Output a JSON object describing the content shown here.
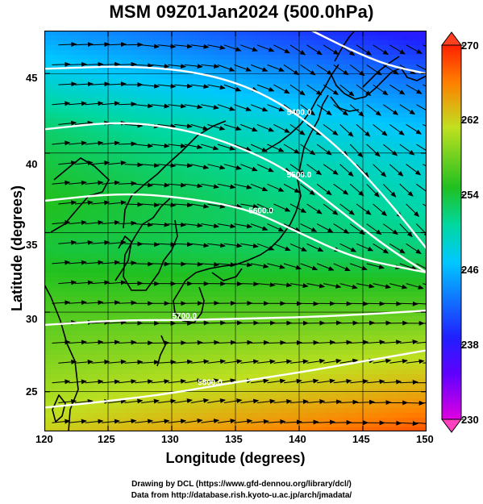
{
  "title": "MSM 09Z01Jan2024 (500.0hPa)",
  "chart_data": {
    "type": "heatmap",
    "title": "MSM 09Z01Jan2024 (500.0hPa)",
    "xlabel": "Longitude (degrees)",
    "ylabel": "Latitude  (degrees)",
    "xlim": [
      120,
      150
    ],
    "ylim": [
      22.5,
      47.7
    ],
    "x_ticks": [
      "120",
      "125",
      "130",
      "135",
      "140",
      "145",
      "150"
    ],
    "y_ticks": [
      "25",
      "30",
      "35",
      "40",
      "45"
    ],
    "colorbar": {
      "min": 230,
      "max": 270,
      "ticks": [
        "230",
        "238",
        "246",
        "254",
        "262",
        "270"
      ],
      "colors": [
        "#e000e0",
        "#2020ff",
        "#00c0ff",
        "#00d8a0",
        "#20c020",
        "#c0e020",
        "#ff8000",
        "#ff2000"
      ]
    },
    "contours": [
      {
        "label": "5400.0",
        "points": [
          [
            120,
            45.3
          ],
          [
            127,
            45.5
          ],
          [
            133,
            45.0
          ],
          [
            138,
            43.5
          ],
          [
            143,
            40.5
          ],
          [
            147,
            37
          ],
          [
            150,
            34
          ]
        ]
      },
      {
        "label": "5500.0",
        "points": [
          [
            120,
            41.5
          ],
          [
            126,
            42
          ],
          [
            131,
            41.5
          ],
          [
            135,
            40.5
          ],
          [
            139,
            39
          ],
          [
            143,
            36.5
          ],
          [
            147,
            34
          ],
          [
            150,
            32.5
          ]
        ]
      },
      {
        "label": "5600.0",
        "points": [
          [
            120,
            37
          ],
          [
            126,
            37.5
          ],
          [
            131,
            37.2
          ],
          [
            136,
            36.5
          ],
          [
            140,
            35
          ],
          [
            144,
            33.5
          ],
          [
            148,
            32.8
          ],
          [
            150,
            32.5
          ]
        ]
      },
      {
        "label": "5700.0",
        "points": [
          [
            120,
            29.2
          ],
          [
            126,
            29.5
          ],
          [
            131,
            29.5
          ],
          [
            136,
            29.6
          ],
          [
            141,
            29.7
          ],
          [
            146,
            29.9
          ],
          [
            150,
            30.1
          ]
        ]
      },
      {
        "label": "5800.0",
        "points": [
          [
            120,
            24
          ],
          [
            125,
            24.4
          ],
          [
            130,
            24.9
          ],
          [
            135,
            25.6
          ],
          [
            140,
            26.2
          ],
          [
            145,
            26.9
          ],
          [
            150,
            27.6
          ]
        ]
      },
      {
        "label": "",
        "points": [
          [
            141,
            47.7
          ],
          [
            144,
            46.5
          ],
          [
            147,
            45.5
          ],
          [
            150,
            45
          ]
        ]
      }
    ],
    "temperature_field": [
      {
        "lat": 47.5,
        "left": 245,
        "right": 238
      },
      {
        "lat": 45,
        "left": 248,
        "right": 242
      },
      {
        "lat": 42,
        "left": 252,
        "right": 246
      },
      {
        "lat": 40,
        "left": 253.5,
        "right": 248
      },
      {
        "lat": 37,
        "left": 255,
        "right": 250
      },
      {
        "lat": 34,
        "left": 254,
        "right": 252
      },
      {
        "lat": 31,
        "left": 256,
        "right": 256
      },
      {
        "lat": 28,
        "left": 258,
        "right": 260
      },
      {
        "lat": 25,
        "left": 260,
        "right": 264
      },
      {
        "lat": 22.5,
        "left": 262,
        "right": 268
      }
    ],
    "wind": "westerly flow vectors"
  },
  "credits": [
    "Drawing by DCL (https://www.gfd-dennou.org/library/dcl/)",
    "Data from http://database.rish.kyoto-u.ac.jp/arch/jmadata/"
  ]
}
